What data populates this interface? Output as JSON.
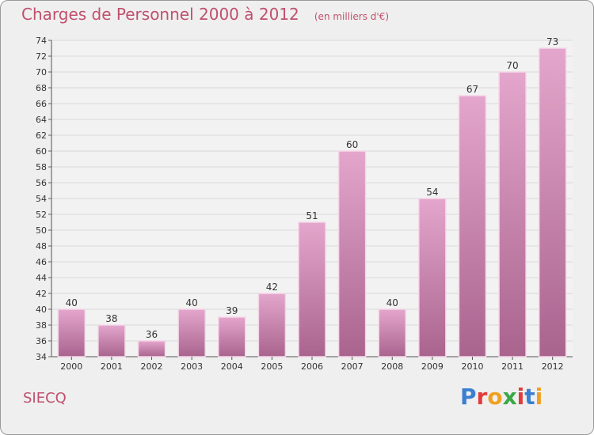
{
  "header": {
    "title": "Charges de Personnel 2000 à 2012",
    "subtitle": "(en milliers d'€)"
  },
  "footer": {
    "commune": "SIECQ",
    "logo_text": "Proxiti",
    "logo_colors": [
      "#3a7fd0",
      "#e23b3b",
      "#f0a020",
      "#3aa845",
      "#e23b3b",
      "#3a7fd0",
      "#f0a020"
    ]
  },
  "colors": {
    "bar_top": "#e4a6cc",
    "bar_bottom": "#a9648e",
    "bar_stroke": "#f4d6e8",
    "title": "#c0506e",
    "background": "#efefef",
    "grid": "#d8d8d8"
  },
  "chart_data": {
    "type": "bar",
    "title": "Charges de Personnel 2000 à 2012",
    "subtitle": "(en milliers d'€)",
    "xlabel": "",
    "ylabel": "",
    "categories": [
      "2000",
      "2001",
      "2002",
      "2003",
      "2004",
      "2005",
      "2006",
      "2007",
      "2008",
      "2009",
      "2010",
      "2011",
      "2012"
    ],
    "values": [
      40,
      38,
      36,
      40,
      39,
      42,
      51,
      60,
      40,
      54,
      67,
      70,
      73
    ],
    "ylim": [
      34,
      74
    ],
    "ytick_step": 2,
    "grid": true,
    "legend": "none"
  }
}
